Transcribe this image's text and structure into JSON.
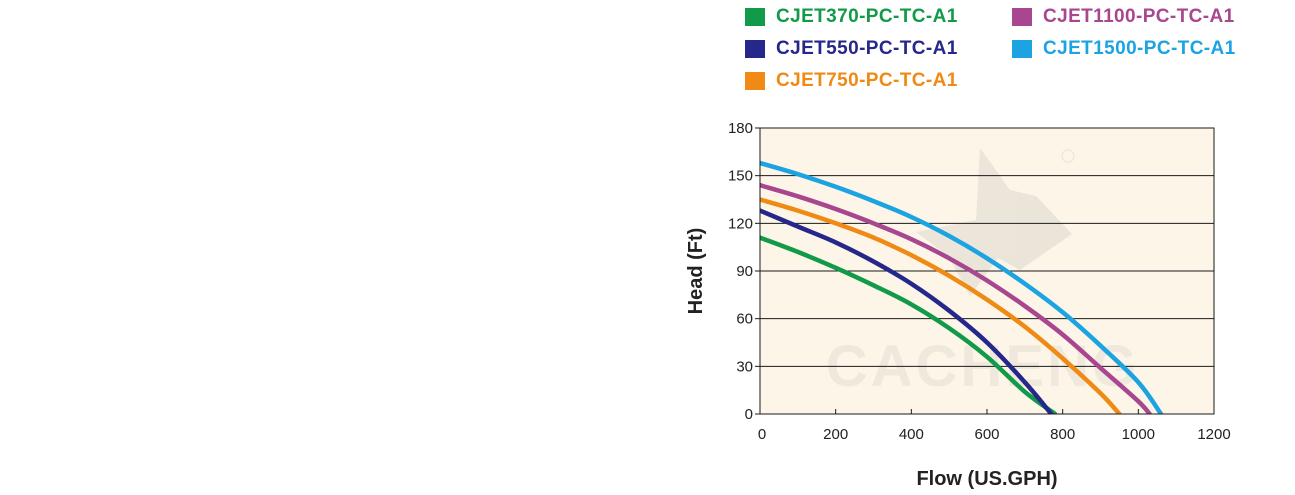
{
  "chart_data": {
    "type": "line",
    "title": "",
    "xlabel": "Flow (US.GPH)",
    "ylabel": "Head (Ft)",
    "xlim": [
      0,
      1200
    ],
    "ylim": [
      0,
      180
    ],
    "xticks": [
      0,
      200,
      400,
      600,
      800,
      1000,
      1200
    ],
    "yticks": [
      0,
      30,
      60,
      90,
      120,
      150,
      180
    ],
    "grid": "horizontal",
    "legend_position": "top-right",
    "plot_background": "#fcf5e8",
    "watermark_text": "CACHENG",
    "series": [
      {
        "name": "CJET370-PC-TC-A1",
        "color": "#119a47",
        "points": [
          [
            0,
            111
          ],
          [
            100,
            102
          ],
          [
            200,
            92
          ],
          [
            300,
            81
          ],
          [
            400,
            69
          ],
          [
            500,
            54
          ],
          [
            600,
            36
          ],
          [
            700,
            14
          ],
          [
            780,
            0
          ]
        ]
      },
      {
        "name": "CJET550-PC-TC-A1",
        "color": "#25278a",
        "points": [
          [
            0,
            128
          ],
          [
            100,
            118
          ],
          [
            200,
            108
          ],
          [
            300,
            96
          ],
          [
            400,
            82
          ],
          [
            500,
            65
          ],
          [
            600,
            45
          ],
          [
            700,
            20
          ],
          [
            770,
            0
          ]
        ]
      },
      {
        "name": "CJET750-PC-TC-A1",
        "color": "#ef8a14",
        "points": [
          [
            0,
            135
          ],
          [
            100,
            128
          ],
          [
            200,
            120
          ],
          [
            300,
            111
          ],
          [
            400,
            100
          ],
          [
            500,
            87
          ],
          [
            600,
            72
          ],
          [
            700,
            55
          ],
          [
            800,
            35
          ],
          [
            900,
            13
          ],
          [
            950,
            0
          ]
        ]
      },
      {
        "name": "CJET1100-PC-TC-A1",
        "color": "#a8468f",
        "points": [
          [
            0,
            144
          ],
          [
            100,
            137
          ],
          [
            200,
            129
          ],
          [
            300,
            120
          ],
          [
            400,
            110
          ],
          [
            500,
            98
          ],
          [
            600,
            84
          ],
          [
            700,
            68
          ],
          [
            800,
            50
          ],
          [
            900,
            29
          ],
          [
            1000,
            8
          ],
          [
            1030,
            0
          ]
        ]
      },
      {
        "name": "CJET1500-PC-TC-A1",
        "color": "#1ba3e2",
        "points": [
          [
            0,
            158
          ],
          [
            100,
            151
          ],
          [
            200,
            143
          ],
          [
            300,
            134
          ],
          [
            400,
            124
          ],
          [
            500,
            112
          ],
          [
            600,
            98
          ],
          [
            700,
            82
          ],
          [
            800,
            64
          ],
          [
            900,
            43
          ],
          [
            1000,
            20
          ],
          [
            1060,
            0
          ]
        ]
      }
    ]
  }
}
